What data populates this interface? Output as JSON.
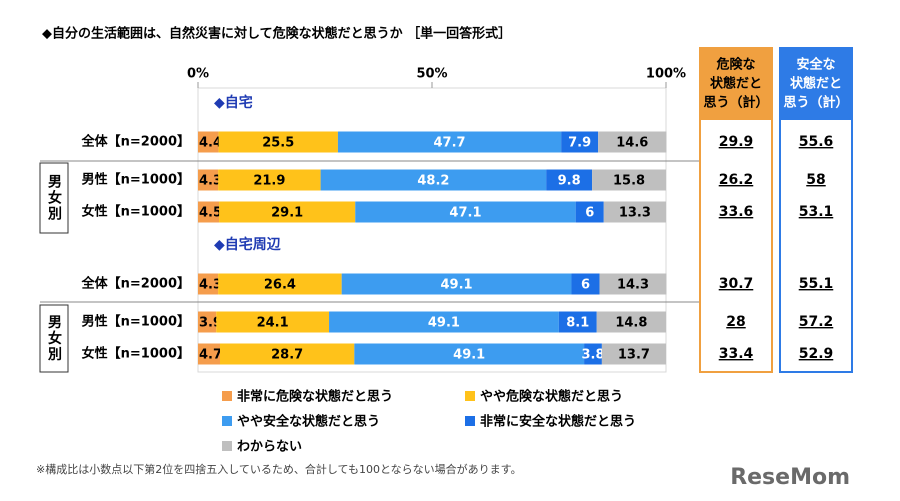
{
  "chart_data": {
    "type": "stacked_bar_horizontal",
    "title": "◆自分の生活範囲は、自然災害に対して危険な状態だと思うか ［単一回答形式］",
    "xlim": [
      0,
      100
    ],
    "xticks": [
      {
        "value": 0,
        "label": "0%"
      },
      {
        "value": 50,
        "label": "50%"
      },
      {
        "value": 100,
        "label": "100%"
      }
    ],
    "groups": [
      {
        "label": "◆自宅",
        "rows": [
          0,
          1,
          2
        ]
      },
      {
        "label": "◆自宅周辺",
        "rows": [
          3,
          4,
          5
        ]
      }
    ],
    "side_label": "男女別",
    "categories": [
      "全体【n=2000】",
      "男性【n=1000】",
      "女性【n=1000】",
      "全体【n=2000】",
      "男性【n=1000】",
      "女性【n=1000】"
    ],
    "series": [
      {
        "name": "非常に危険な状態だと思う",
        "color": "#f59d4c",
        "label_color": "#000000",
        "values": [
          4.4,
          4.3,
          4.5,
          4.3,
          3.9,
          4.7
        ]
      },
      {
        "name": "やや危険な状態だと思う",
        "color": "#ffc21a",
        "label_color": "#000000",
        "values": [
          25.5,
          21.9,
          29.1,
          26.4,
          24.1,
          28.7
        ]
      },
      {
        "name": "やや安全な状態だと思う",
        "color": "#3d9cf0",
        "label_color": "#ffffff",
        "values": [
          47.7,
          48.2,
          47.1,
          49.1,
          49.1,
          49.1
        ]
      },
      {
        "name": "非常に安全な状態だと思う",
        "color": "#1c6fe6",
        "label_color": "#ffffff",
        "values": [
          7.9,
          9.8,
          6.0,
          6.0,
          8.1,
          3.8
        ]
      },
      {
        "name": "わからない",
        "color": "#bfbfbf",
        "label_color": "#000000",
        "values": [
          14.6,
          15.8,
          13.3,
          14.3,
          14.8,
          13.7
        ]
      }
    ],
    "side_columns": [
      {
        "header": [
          "危険な",
          "状態だと",
          "思う（計）"
        ],
        "color": "#f0a040",
        "header_text_color": "#000000",
        "values": [
          29.9,
          26.2,
          33.6,
          30.7,
          28.0,
          33.4
        ]
      },
      {
        "header": [
          "安全な",
          "状態だと",
          "思う（計）"
        ],
        "color": "#2e7be6",
        "header_text_color": "#ffffff",
        "values": [
          55.6,
          58.0,
          53.1,
          55.1,
          57.2,
          52.9
        ]
      }
    ],
    "footnote": "※構成比は小数点以下第2位を四捨五入しているため、合計しても100とならない場合があります。",
    "source_logo": "ReseMom"
  }
}
